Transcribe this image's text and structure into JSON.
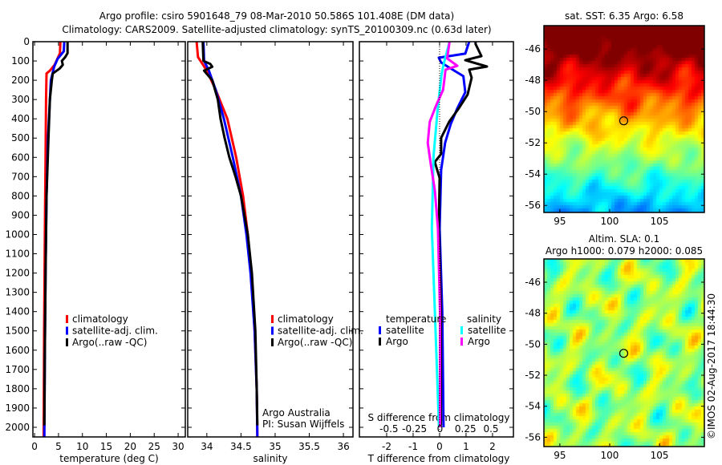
{
  "title": {
    "line1": "Argo profile: csiro 5901648_79 08-Mar-2010 50.586S 101.408E (DM data)",
    "line2": "Climatology: CARS2009. Satellite-adjusted climatology: synTS_20100309.nc (0.63d later)"
  },
  "credit": "Argo Australia",
  "pi": "PI: Susan Wijffels",
  "copyright": "©IMOS 02-Aug-2017 18:44:30",
  "colors": {
    "climatology": "#ff0000",
    "satellite": "#0000ff",
    "argo": "#000000",
    "sal_satellite": "#00ffff",
    "sal_argo": "#ff00ff"
  },
  "chart_data": [
    {
      "type": "line",
      "id": "temperature",
      "xlabel": "temperature (deg C)",
      "ylabel": "depth",
      "xlim": [
        -0.35,
        31.5
      ],
      "ylim": [
        2050,
        0
      ],
      "xticks": [
        0,
        5,
        10,
        15,
        20,
        25,
        30
      ],
      "yticks": [
        0,
        100,
        200,
        300,
        400,
        500,
        600,
        700,
        800,
        900,
        1000,
        1100,
        1200,
        1300,
        1400,
        1500,
        1600,
        1700,
        1800,
        1900,
        2000
      ],
      "legend": [
        "climatology",
        "satellite-adj. clim.",
        "Argo(..raw -QC)"
      ],
      "series": [
        {
          "name": "climatology",
          "color": "#ff0000",
          "depth": [
            0,
            60,
            120,
            150,
            165,
            300,
            600,
            1000,
            1500,
            2050
          ],
          "values": [
            5.4,
            5.3,
            4.2,
            3.2,
            2.5,
            2.4,
            2.3,
            2.15,
            2.0,
            1.9
          ]
        },
        {
          "name": "satellite-adj. clim.",
          "color": "#0000ff",
          "depth": [
            0,
            50,
            90,
            130,
            200,
            300,
            500,
            800,
            1200,
            1600,
            2050
          ],
          "values": [
            6.2,
            6.1,
            4.8,
            4.1,
            3.4,
            3.2,
            2.8,
            2.5,
            2.3,
            2.15,
            2.05
          ]
        },
        {
          "name": "Argo(..raw -QC)",
          "color": "#000000",
          "depth": [
            0,
            60,
            80,
            100,
            120,
            140,
            165,
            200,
            300,
            500,
            800,
            1200,
            1600,
            1990
          ],
          "values": [
            6.9,
            6.9,
            6.4,
            5.7,
            5.9,
            5.2,
            3.8,
            3.6,
            3.2,
            2.9,
            2.5,
            2.3,
            2.15,
            2.05
          ]
        }
      ]
    },
    {
      "type": "line",
      "id": "salinity",
      "xlabel": "salinity",
      "xlim": [
        33.72,
        36.14
      ],
      "ylim": [
        2050,
        0
      ],
      "xticks": [
        34,
        34.5,
        35,
        35.5,
        36
      ],
      "legend": [
        "climatology",
        "satellite-adj. clim.",
        "Argo(..raw -QC)"
      ],
      "series": [
        {
          "name": "climatology",
          "color": "#ff0000",
          "depth": [
            0,
            80,
            150,
            250,
            400,
            600,
            800,
            1000,
            1200,
            1500,
            1800,
            2050
          ],
          "values": [
            33.85,
            33.87,
            34.0,
            34.13,
            34.3,
            34.43,
            34.53,
            34.6,
            34.65,
            34.7,
            34.73,
            34.74
          ]
        },
        {
          "name": "satellite-adj. clim.",
          "color": "#0000ff",
          "depth": [
            0,
            100,
            150,
            250,
            400,
            600,
            800,
            1000,
            1200,
            1500,
            1800,
            2050
          ],
          "values": [
            33.95,
            33.96,
            34.03,
            34.13,
            34.25,
            34.38,
            34.5,
            34.58,
            34.64,
            34.7,
            34.73,
            34.74
          ]
        },
        {
          "name": "Argo(..raw -QC)",
          "color": "#000000",
          "depth": [
            0,
            100,
            115,
            130,
            150,
            200,
            300,
            400,
            500,
            600,
            700,
            800,
            1000,
            1200,
            1500,
            1800,
            1990
          ],
          "values": [
            33.94,
            33.95,
            34.05,
            34.08,
            33.96,
            34.08,
            34.16,
            34.2,
            34.26,
            34.33,
            34.42,
            34.5,
            34.6,
            34.66,
            34.71,
            34.73,
            34.74
          ]
        }
      ]
    },
    {
      "type": "line",
      "id": "difference",
      "xlabel": "T difference from climatology",
      "xlabel2": "S difference from climatology",
      "xlim": [
        -3.03,
        2.79
      ],
      "xlim_s": [
        -0.79,
        0.72
      ],
      "xticks": [
        -2,
        -1,
        0,
        1,
        2
      ],
      "xticks_s": [
        -0.5,
        -0.25,
        0,
        0.25,
        0.5
      ],
      "xticks_s_labels": [
        "-0.5",
        "-0.25",
        "0",
        "0.25",
        "0.5"
      ],
      "legend_titles": [
        "temperature",
        "salinity"
      ],
      "legend": [
        "satellite",
        "Argo",
        "satellite",
        "Argo"
      ],
      "series": [
        {
          "name": "temperature satellite",
          "axis": "T",
          "color": "#0000ff",
          "depth": [
            0,
            62,
            83,
            108,
            129,
            179,
            262,
            345,
            428,
            524,
            665,
            969,
            1400,
            2000
          ],
          "values": [
            1.12,
            0.97,
            -0.03,
            0.06,
            0.3,
            0.9,
            0.97,
            0.67,
            0.42,
            0.21,
            0.06,
            0.0,
            0.1,
            0.15
          ]
        },
        {
          "name": "temperature Argo",
          "axis": "T",
          "color": "#000000",
          "depth": [
            0,
            12,
            75,
            96,
            129,
            145,
            187,
            274,
            345,
            416,
            499,
            582,
            624,
            707,
            969,
            1400,
            1990
          ],
          "values": [
            1.36,
            1.36,
            1.58,
            0.97,
            1.79,
            1.12,
            1.21,
            1.06,
            0.73,
            0.36,
            0.06,
            0.06,
            -0.18,
            0.0,
            -0.03,
            0.05,
            0.05
          ]
        },
        {
          "name": "salinity satellite",
          "axis": "S",
          "color": "#00ffff",
          "depth": [
            0,
            108,
            166,
            358,
            595,
            969,
            1400,
            2000
          ],
          "values": [
            0.094,
            0.04,
            0.016,
            -0.024,
            -0.063,
            -0.08,
            -0.05,
            -0.01
          ]
        },
        {
          "name": "salinity Argo",
          "axis": "S",
          "color": "#ff00ff",
          "depth": [
            0,
            87,
            125,
            145,
            250,
            333,
            416,
            524,
            636,
            773,
            969,
            1400,
            2000
          ],
          "values": [
            0.094,
            0.07,
            0.17,
            0.055,
            0.03,
            -0.04,
            -0.1,
            -0.12,
            -0.09,
            -0.05,
            -0.02,
            0.0,
            0.0
          ]
        }
      ]
    },
    {
      "type": "heatmap",
      "id": "sst-map",
      "title": "sat. SST: 6.35 Argo: 6.58",
      "xlim": [
        93.4,
        109.5
      ],
      "ylim": [
        -56.45,
        -44.5
      ],
      "xticks": [
        95,
        100,
        105
      ],
      "yticks": [
        -46,
        -48,
        -50,
        -52,
        -54,
        -56
      ],
      "marker": {
        "lon": 101.408,
        "lat": -50.586
      }
    },
    {
      "type": "heatmap",
      "id": "sla-map",
      "title": "Altim. SLA: 0.1",
      "subtitle": "Argo h1000: 0.079 h2000: 0.085",
      "xlim": [
        93.4,
        109.5
      ],
      "ylim": [
        -56.6,
        -44.5
      ],
      "xticks": [
        95,
        100,
        105
      ],
      "yticks": [
        -46,
        -48,
        -50,
        -52,
        -54,
        -56
      ],
      "marker": {
        "lon": 101.408,
        "lat": -50.586
      }
    }
  ]
}
